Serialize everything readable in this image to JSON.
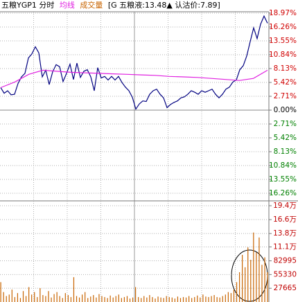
{
  "chart_data": [
    {
      "type": "line",
      "title": "五粮YGP1 分时",
      "annotation": "[G 五粮液:13.48▲ 认沽价:7.89]",
      "ylim": [
        -16.26,
        18.97
      ],
      "yticks": [
        {
          "value": 18.97,
          "label": "18.97%"
        },
        {
          "value": 16.26,
          "label": "16.26%"
        },
        {
          "value": 13.55,
          "label": "13.55%"
        },
        {
          "value": 10.84,
          "label": "10.84%"
        },
        {
          "value": 8.13,
          "label": "8.13%"
        },
        {
          "value": 5.42,
          "label": "5.42%"
        },
        {
          "value": 2.71,
          "label": "2.71%"
        },
        {
          "value": 0,
          "label": "0.00%"
        },
        {
          "value": -2.71,
          "label": "2.71%"
        },
        {
          "value": -5.42,
          "label": "5.42%"
        },
        {
          "value": -8.13,
          "label": "8.13%"
        },
        {
          "value": -10.84,
          "label": "10.84%"
        },
        {
          "value": -13.55,
          "label": "13.55%"
        },
        {
          "value": -16.26,
          "label": "16.26%"
        }
      ],
      "grid": true,
      "series": [
        {
          "color": "#000080",
          "values": [
            4.4,
            3.3,
            3.8,
            3.0,
            3.1,
            5.2,
            6.5,
            7.2,
            10.2,
            11.0,
            12.4,
            11.2,
            6.5,
            7.8,
            5.0,
            7.5,
            8.9,
            8.5,
            5.6,
            7.2,
            9.0,
            6.0,
            9.2,
            6.4,
            7.6,
            7.9,
            6.5,
            3.8,
            8.3,
            6.3,
            6.6,
            5.9,
            6.6,
            5.9,
            6.6,
            5.4,
            4.5,
            3.8,
            2.5,
            0.2,
            1.2,
            1.8,
            1.7,
            3.1,
            3.8,
            4.1,
            3.1,
            2.4,
            0.5,
            1.1,
            1.5,
            1.8,
            2.4,
            2.6,
            3.1,
            3.8,
            3.5,
            3.1,
            3.8,
            3.5,
            3.8,
            4.1,
            3.1,
            2.4,
            3.1,
            4.1,
            4.5,
            5.5,
            5.9,
            7.9,
            8.7,
            10.6,
            13.4,
            16.1,
            14.0,
            16.8,
            18.4,
            17.0
          ]
        },
        {
          "name": "均线",
          "color": "#e020e0",
          "values": [
            4.4,
            5.5,
            7.0,
            7.8,
            7.6,
            7.4,
            7.3,
            7.2,
            7.1,
            7.0,
            6.9,
            6.8,
            6.6,
            6.5,
            6.4,
            6.2,
            6.0,
            5.8,
            6.2,
            7.8
          ]
        }
      ]
    },
    {
      "type": "bar",
      "ylim": [
        0,
        194000
      ],
      "yticks": [
        {
          "value": 194000,
          "label": "19.4万"
        },
        {
          "value": 166000,
          "label": "16.6万"
        },
        {
          "value": 138000,
          "label": "13.8万"
        },
        {
          "value": 111000,
          "label": "11.1万"
        },
        82995,
        55330,
        27665
      ],
      "series": [
        {
          "name": "成交量",
          "color": "#c86400",
          "values": [
            40000,
            20000,
            12000,
            15000,
            25000,
            10000,
            18000,
            8000,
            22000,
            12000,
            30000,
            15000,
            20000,
            10000,
            28000,
            14000,
            12000,
            22000,
            9000,
            16000,
            20000,
            12000,
            8000,
            18000,
            14000,
            10000,
            50000,
            12000,
            9000,
            15000,
            20000,
            8000,
            11000,
            14000,
            9000,
            16000,
            12000,
            10000,
            8000,
            13000,
            9000,
            12000,
            15000,
            8000,
            10000,
            12000,
            7000,
            9000,
            30000,
            10000,
            8000,
            12000,
            9000,
            14000,
            10000,
            7000,
            11000,
            9000,
            8000,
            12000,
            10000,
            9000,
            7000,
            11000,
            8000,
            10000,
            9000,
            12000,
            8000,
            10000,
            13000,
            9000,
            15000,
            11000,
            10000,
            12000,
            14000,
            10000,
            9000,
            12000,
            15000,
            20000,
            18000,
            25000,
            40000,
            60000,
            95000,
            70000,
            110000,
            85000,
            140000,
            100000,
            130000,
            75000,
            90000,
            60000
          ]
        }
      ]
    }
  ]
}
